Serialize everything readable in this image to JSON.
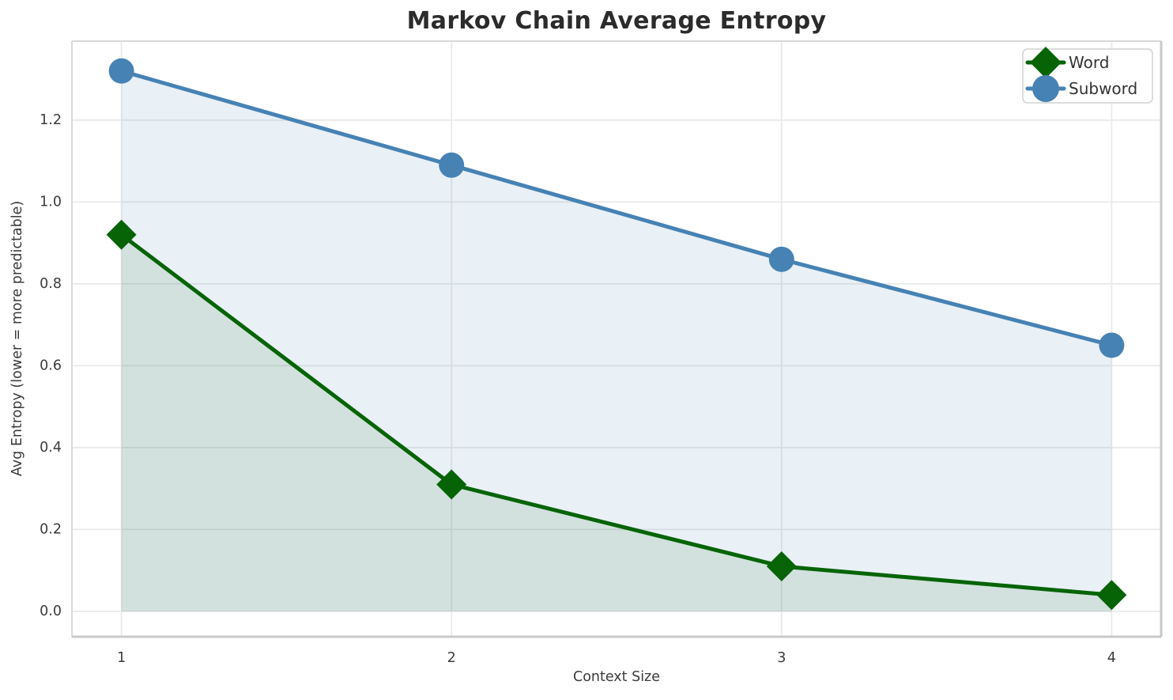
{
  "chart_data": {
    "type": "line",
    "title": "Markov Chain Average Entropy",
    "xlabel": "Context Size",
    "ylabel": "Avg Entropy (lower = more predictable)",
    "x": [
      1,
      2,
      3,
      4
    ],
    "series": [
      {
        "name": "Word",
        "values": [
          0.92,
          0.31,
          0.11,
          0.04
        ],
        "color": "#066406",
        "marker": "diamond",
        "fill_to_zero": true,
        "fill_opacity": 0.1
      },
      {
        "name": "Subword",
        "values": [
          1.32,
          1.09,
          0.86,
          0.65
        ],
        "color": "#4682b4",
        "marker": "circle",
        "fill_to_zero": true,
        "fill_opacity": 0.12
      }
    ],
    "xlim": [
      0.85,
      4.15
    ],
    "ylim": [
      -0.062,
      1.393
    ],
    "xticks": [
      1,
      2,
      3,
      4
    ],
    "yticks": [
      0.0,
      0.2,
      0.4,
      0.6,
      0.8,
      1.0,
      1.2
    ],
    "grid": true,
    "legend": {
      "position": "upper right",
      "entries": [
        "Word",
        "Subword"
      ]
    }
  },
  "styles": {
    "grid_color": "#e9e9e9",
    "spine_light": "#d9d9d9",
    "spine_dark": "#c9c9c9",
    "tick_label_color": "#3b3b3b",
    "legend_text_color": "#333333",
    "legend_border_color": "#d2d2d2",
    "background": "#ffffff"
  }
}
